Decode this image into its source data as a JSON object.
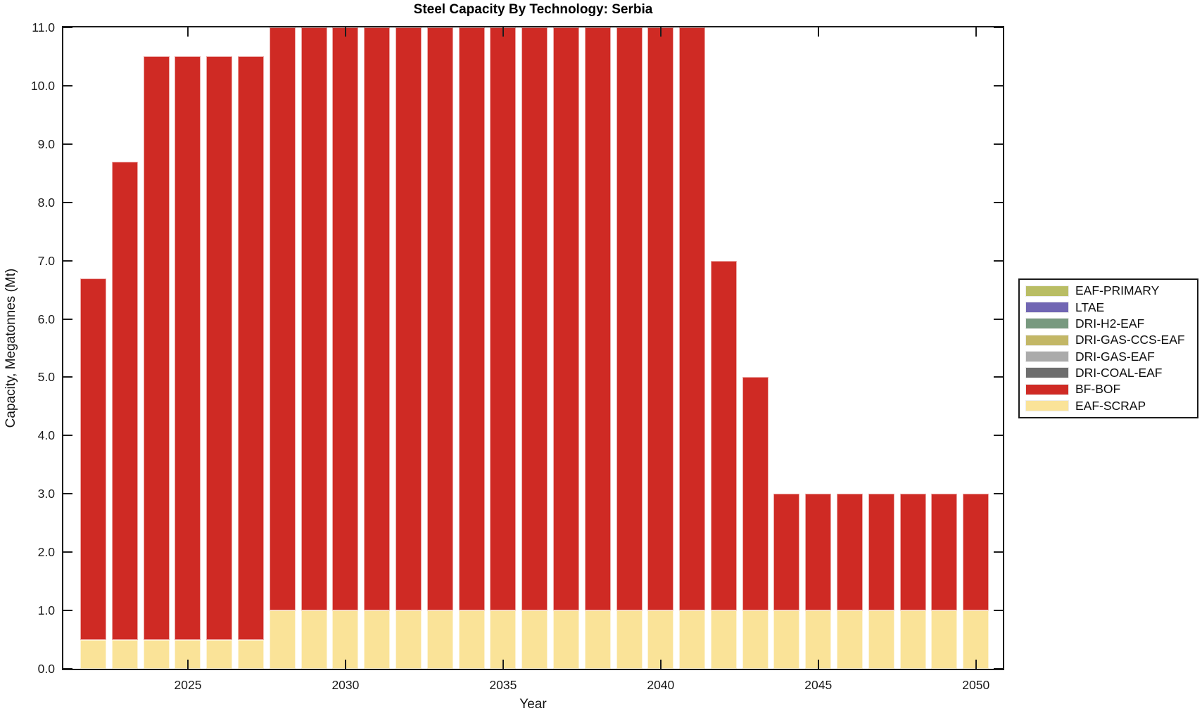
{
  "chart_data": {
    "type": "bar",
    "stacked": true,
    "title": "Steel Capacity By Technology: Serbia",
    "xlabel": "Year",
    "ylabel": "Capacity, Megatonnes (Mt)",
    "ylim": [
      0,
      11
    ],
    "grid": false,
    "x": [
      2022,
      2023,
      2024,
      2025,
      2026,
      2027,
      2028,
      2029,
      2030,
      2031,
      2032,
      2033,
      2034,
      2035,
      2036,
      2037,
      2038,
      2039,
      2040,
      2041,
      2042,
      2043,
      2044,
      2045,
      2046,
      2047,
      2048,
      2049,
      2050
    ],
    "series": [
      {
        "name": "EAF-SCRAP",
        "color": "#fae398",
        "values": [
          0.5,
          0.5,
          0.5,
          0.5,
          0.5,
          0.5,
          1.0,
          1.0,
          1.0,
          1.0,
          1.0,
          1.0,
          1.0,
          1.0,
          1.0,
          1.0,
          1.0,
          1.0,
          1.0,
          1.0,
          1.0,
          1.0,
          1.0,
          1.0,
          1.0,
          1.0,
          1.0,
          1.0,
          1.0
        ]
      },
      {
        "name": "BF-BOF",
        "color": "#cf2a24",
        "values": [
          6.2,
          8.2,
          10.0,
          10.0,
          10.0,
          10.0,
          10.0,
          10.0,
          10.0,
          10.0,
          10.0,
          10.0,
          10.0,
          10.0,
          10.0,
          10.0,
          10.0,
          10.0,
          10.0,
          10.0,
          6.0,
          4.0,
          2.0,
          2.0,
          2.0,
          2.0,
          2.0,
          2.0,
          2.0
        ]
      }
    ],
    "totals": [
      6.7,
      8.7,
      10.5,
      10.5,
      10.5,
      10.5,
      11.0,
      11.0,
      11.0,
      11.0,
      11.0,
      11.0,
      11.0,
      11.0,
      11.0,
      11.0,
      11.0,
      11.0,
      11.0,
      11.0,
      7.0,
      5.0,
      3.0,
      3.0,
      3.0,
      3.0,
      3.0,
      3.0,
      3.0
    ],
    "yticks": [
      {
        "value": 0,
        "label": "0.0"
      },
      {
        "value": 1,
        "label": "1.0"
      },
      {
        "value": 2,
        "label": "2.0"
      },
      {
        "value": 3,
        "label": "3.0"
      },
      {
        "value": 4,
        "label": "4.0"
      },
      {
        "value": 5,
        "label": "5.0"
      },
      {
        "value": 6,
        "label": "6.0"
      },
      {
        "value": 7,
        "label": "7.0"
      },
      {
        "value": 8,
        "label": "8.0"
      },
      {
        "value": 9,
        "label": "9.0"
      },
      {
        "value": 10,
        "label": "10.0"
      },
      {
        "value": 11,
        "label": "11.0"
      }
    ],
    "xticks": [
      2025,
      2030,
      2035,
      2040,
      2045,
      2050
    ]
  },
  "legend": {
    "position": "right",
    "entries": [
      {
        "label": "EAF-PRIMARY",
        "color": "#b9bd64"
      },
      {
        "label": "LTAE",
        "color": "#7166b3"
      },
      {
        "label": "DRI-H2-EAF",
        "color": "#78997f"
      },
      {
        "label": "DRI-GAS-CCS-EAF",
        "color": "#c3b766"
      },
      {
        "label": "DRI-GAS-EAF",
        "color": "#ababab"
      },
      {
        "label": "DRI-COAL-EAF",
        "color": "#6d6d6d"
      },
      {
        "label": "BF-BOF",
        "color": "#cf2a24"
      },
      {
        "label": "EAF-SCRAP",
        "color": "#fae398"
      }
    ]
  }
}
